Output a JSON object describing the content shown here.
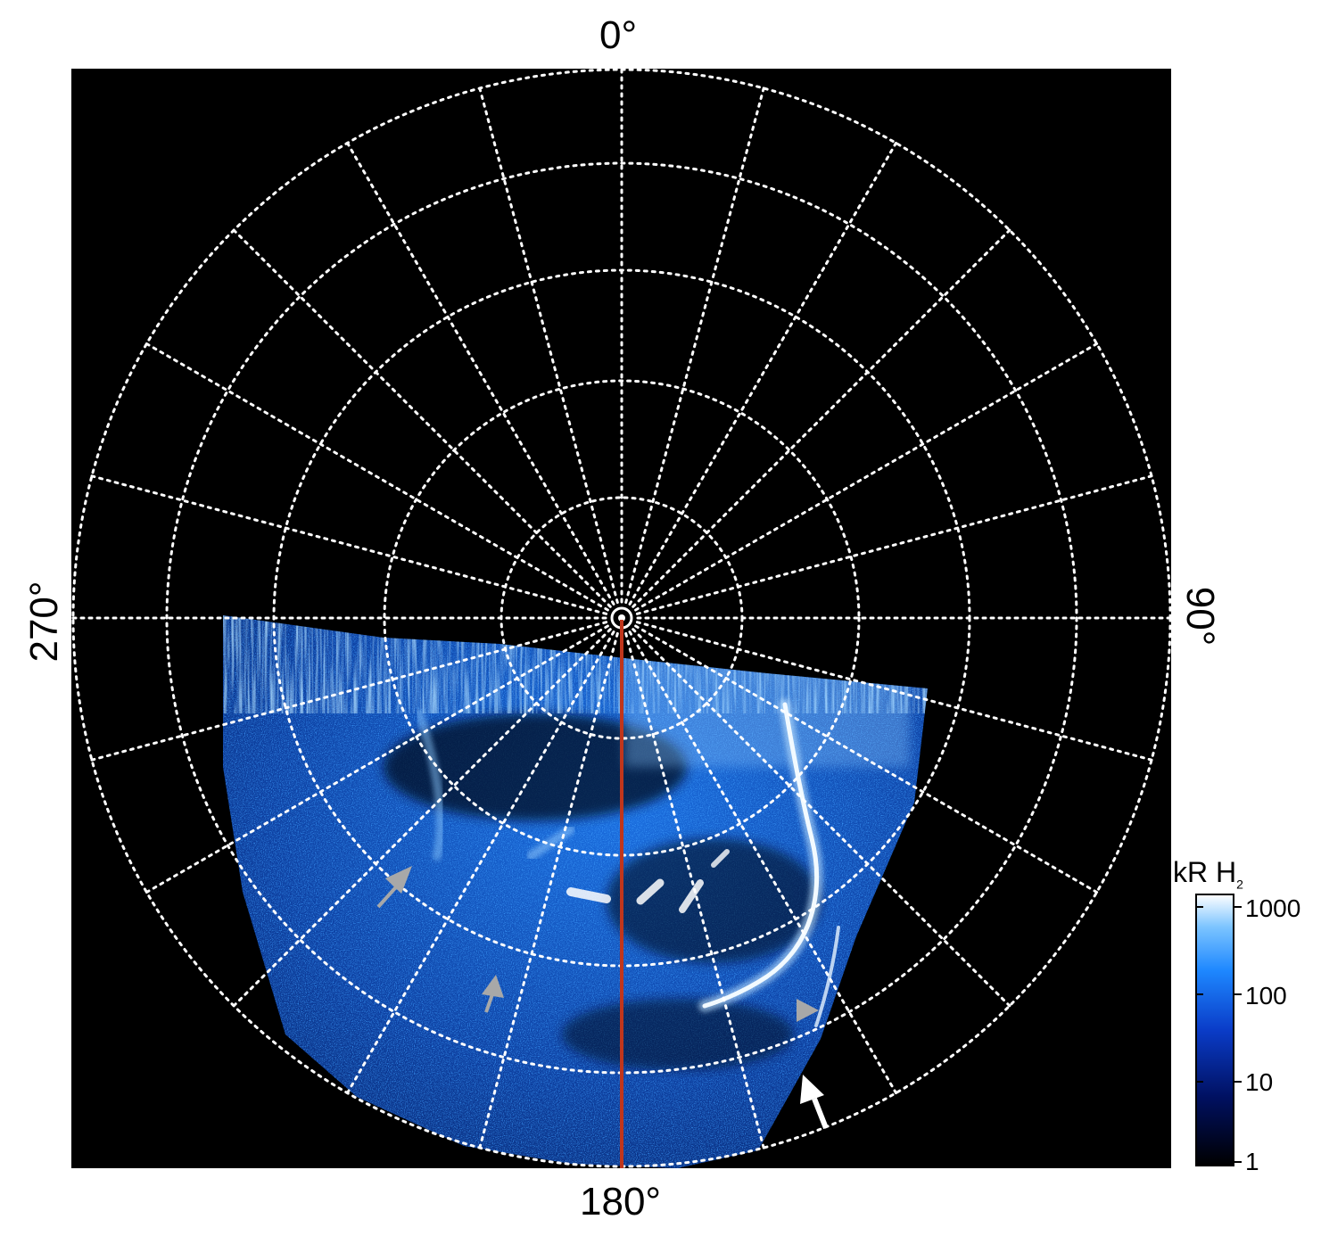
{
  "labels": {
    "top": "0°",
    "bottom": "180°",
    "left": "270°",
    "right": "90°"
  },
  "colorbar": {
    "title": "kR H",
    "title_sub": "2",
    "ticks": [
      "1000",
      "100",
      "10",
      "1"
    ]
  },
  "colors": {
    "background": "#000000",
    "grid": "#ffffff",
    "meridian": "#c0361c",
    "arrow_gray": "#a8a8a8",
    "arrow_white": "#ffffff",
    "emission_dim": "#0a2a80",
    "emission_mid": "#1e78ff",
    "emission_bright": "#e6f4ff"
  },
  "image": {
    "subject": "polar projection of auroral H2 emission",
    "grid": true
  }
}
